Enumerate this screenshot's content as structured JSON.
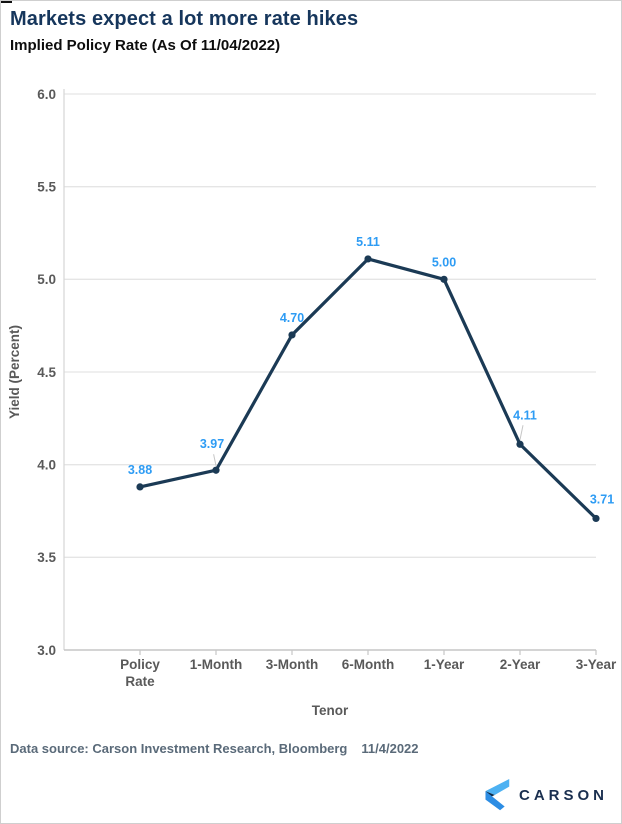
{
  "header": {
    "title": "Markets expect a lot more rate hikes",
    "subtitle": "Implied Policy Rate (As Of 11/04/2022)"
  },
  "chart_data": {
    "type": "line",
    "title": "Implied Policy Rate (As Of 11/04/2022)",
    "categories": [
      "Policy Rate",
      "1-Month",
      "3-Month",
      "6-Month",
      "1-Year",
      "2-Year",
      "3-Year"
    ],
    "values": [
      3.88,
      3.97,
      4.7,
      5.11,
      5.0,
      4.11,
      3.71
    ],
    "xlabel": "Tenor",
    "ylabel": "Yield (Percent)",
    "ylim": [
      3.0,
      6.0
    ],
    "ytick_step": 0.5,
    "ytick_labels": [
      "3.0",
      "3.5",
      "4.0",
      "4.5",
      "5.0",
      "5.5",
      "6.0"
    ],
    "grid": true,
    "legend": "none",
    "line_color": "#1b3a55",
    "marker_color": "#1b3a55",
    "label_color": "#2e9cf4",
    "label_offsets": {
      "1": {
        "dx": -4,
        "dy": 22,
        "leader": true
      },
      "5": {
        "dx": 5,
        "dy": 25,
        "leader": true
      },
      "6": {
        "dx": 6,
        "dy": 15
      }
    }
  },
  "footer": {
    "source": "Data source: Carson Investment Research, Bloomberg",
    "date": "11/4/2022"
  },
  "logo": {
    "text": "CARSON"
  },
  "colors": {
    "title_navy": "#16365c",
    "axis_text_gray": "#595959",
    "gridline_gray": "#e5e5e5",
    "footer_slate": "#5a6a79",
    "logo_navy": "#1a2f4f",
    "logo_light_blue": "#4db1f2",
    "logo_mid_blue": "#2c8de4",
    "logo_fold_navy": "#0d2947"
  }
}
